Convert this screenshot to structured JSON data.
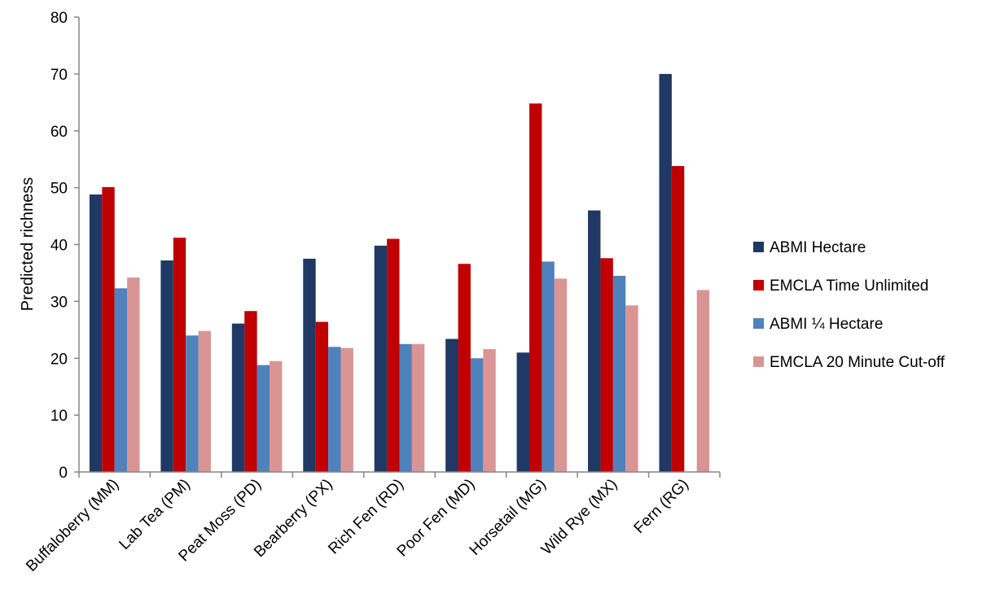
{
  "chart_data": {
    "type": "bar",
    "title": "",
    "xlabel": "",
    "ylabel": "Predicted richness",
    "ylim": [
      0,
      80
    ],
    "yticks": [
      0,
      10,
      20,
      30,
      40,
      50,
      60,
      70,
      80
    ],
    "grid": false,
    "legend_position": "right",
    "categories": [
      "Buffaloberry (MM)",
      "Lab Tea (PM)",
      "Peat Moss (PD)",
      "Bearberry (PX)",
      "Rich Fen (RD)",
      "Poor Fen (MD)",
      "Horsetail (MG)",
      "Wild Rye (MX)",
      "Fern (RG)"
    ],
    "series": [
      {
        "name": "ABMI Hectare",
        "color": "#1f3864",
        "values": [
          48.8,
          37.2,
          26.1,
          37.5,
          39.8,
          23.4,
          21.0,
          46.0,
          70.0
        ]
      },
      {
        "name": "EMCLA Time Unlimited",
        "color": "#c00000",
        "values": [
          50.1,
          41.2,
          28.3,
          26.4,
          41.0,
          36.6,
          64.8,
          37.6,
          53.8
        ]
      },
      {
        "name": "ABMI ¼ Hectare",
        "color": "#4f81bd",
        "values": [
          32.3,
          24.0,
          18.8,
          22.0,
          22.5,
          20.0,
          37.0,
          34.5,
          null
        ]
      },
      {
        "name": "EMCLA 20 Minute Cut-off",
        "color": "#d99594",
        "values": [
          34.2,
          24.8,
          19.5,
          21.8,
          22.5,
          21.6,
          34.0,
          29.3,
          32.0
        ]
      }
    ]
  }
}
